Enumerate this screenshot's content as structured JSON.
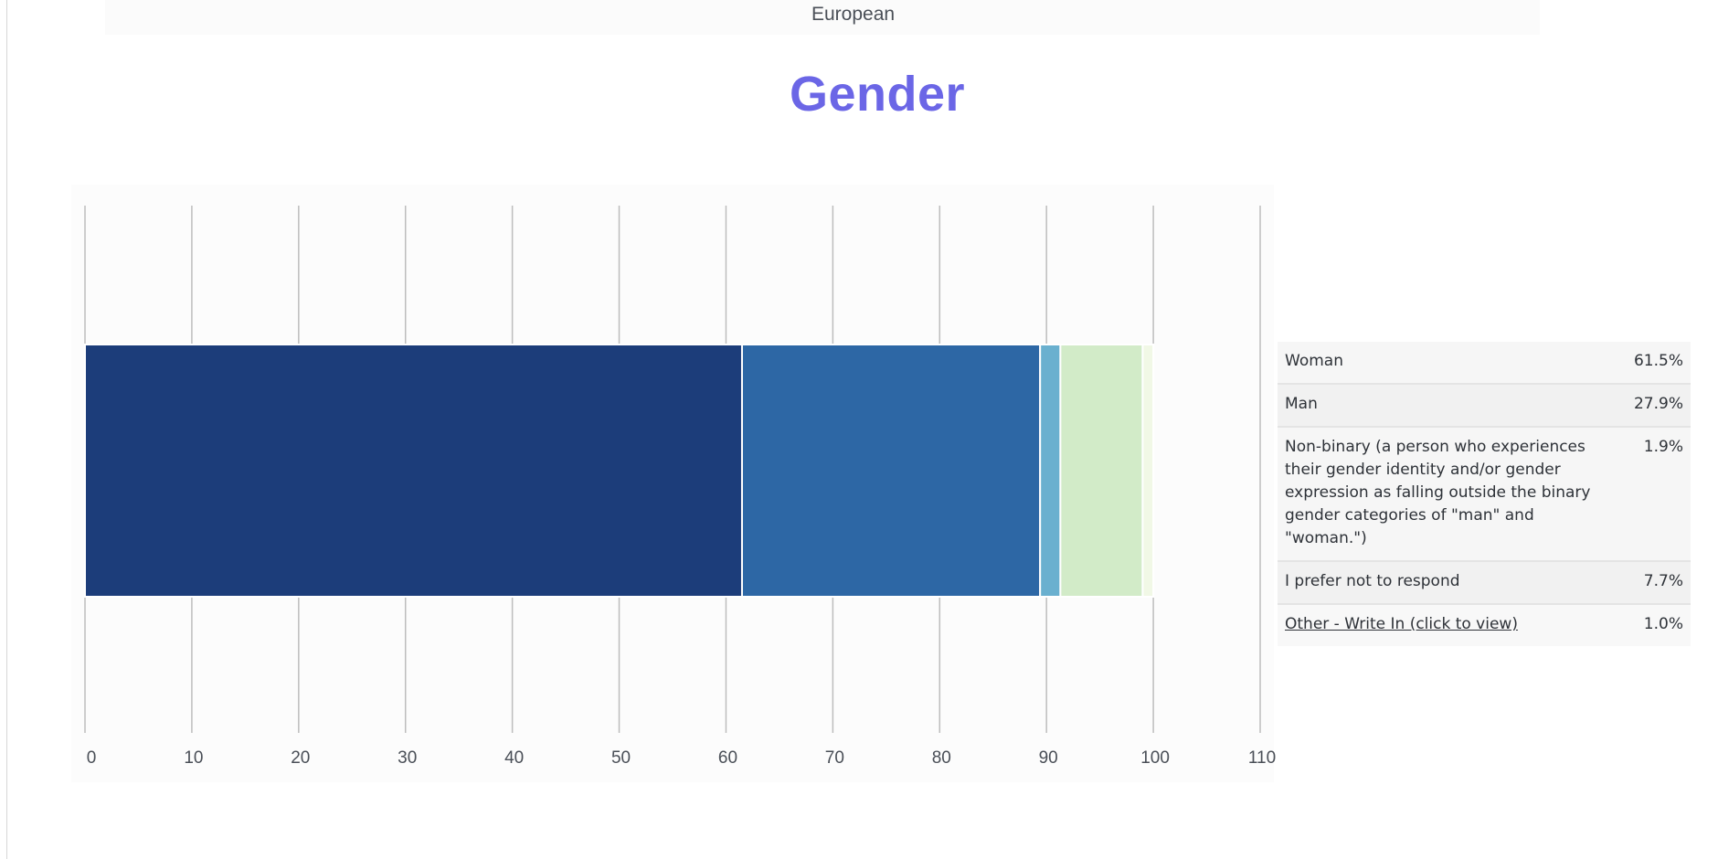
{
  "previous_section": {
    "visible_label": "European"
  },
  "section_title": "Gender",
  "colors": {
    "title": "#6b66e6",
    "woman": "#1c3d7a",
    "man": "#2d67a5",
    "nonbinary": "#6ab0cf",
    "prefer_not": "#d2ebc8",
    "other": "#f1f8e6",
    "gridline": "#bdbdbd"
  },
  "legend": [
    {
      "label": "Woman",
      "value": "61.5%"
    },
    {
      "label": "Man",
      "value": "27.9%"
    },
    {
      "label": "Non-binary (a person who experiences their gender identity and/or gender expression as falling outside the binary gender categories of \"man\" and \"woman.\")",
      "value": "1.9%"
    },
    {
      "label": "I prefer not to respond",
      "value": "7.7%"
    },
    {
      "label": "Other - Write In (click to view)",
      "value": "1.0%",
      "link": true
    }
  ],
  "chart_data": {
    "type": "bar",
    "orientation": "horizontal",
    "stacked": true,
    "title": "Gender",
    "xlim": [
      0,
      110
    ],
    "ticks": [
      0,
      10,
      20,
      30,
      40,
      50,
      60,
      70,
      80,
      90,
      100,
      110
    ],
    "grid": true,
    "legend_position": "right",
    "series": [
      {
        "name": "Woman",
        "value": 61.5
      },
      {
        "name": "Man",
        "value": 27.9
      },
      {
        "name": "Non-binary (a person who experiences their gender identity and/or gender expression as falling outside the binary gender categories of \"man\" and \"woman.\")",
        "value": 1.9
      },
      {
        "name": "I prefer not to respond",
        "value": 7.7
      },
      {
        "name": "Other - Write In (click to view)",
        "value": 1.0
      }
    ]
  }
}
